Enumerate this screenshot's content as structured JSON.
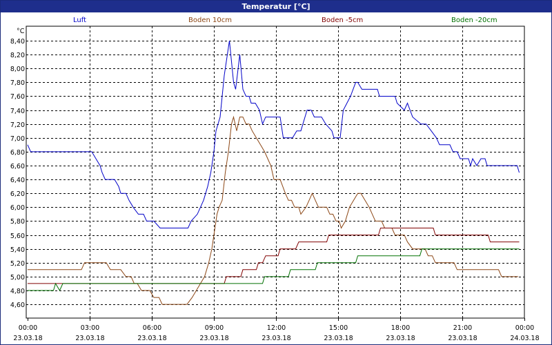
{
  "window": {
    "title": "Temperatur [°C]"
  },
  "chart_data": {
    "type": "line",
    "title": "Temperatur [°C]",
    "ylabel": "°C",
    "ylim": [
      4.5,
      8.5
    ],
    "yticks": [
      4.6,
      4.8,
      5.0,
      5.2,
      5.4,
      5.6,
      5.8,
      6.0,
      6.2,
      6.4,
      6.6,
      6.8,
      7.0,
      7.2,
      7.4,
      7.6,
      7.8,
      8.0,
      8.2,
      8.4
    ],
    "xlim": [
      0,
      24
    ],
    "xticks": [
      {
        "time": "00:00",
        "date": "23.03.18",
        "h": 0
      },
      {
        "time": "03:00",
        "date": "23.03.18",
        "h": 3
      },
      {
        "time": "06:00",
        "date": "23.03.18",
        "h": 6
      },
      {
        "time": "09:00",
        "date": "23.03.18",
        "h": 9
      },
      {
        "time": "12:00",
        "date": "23.03.18",
        "h": 12
      },
      {
        "time": "15:00",
        "date": "23.03.18",
        "h": 15
      },
      {
        "time": "18:00",
        "date": "23.03.18",
        "h": 18
      },
      {
        "time": "21:00",
        "date": "23.03.18",
        "h": 21
      },
      {
        "time": "00:00",
        "date": "24.03.18",
        "h": 24
      }
    ],
    "grid": true,
    "legend_position": "top",
    "series": [
      {
        "name": "Luft",
        "color": "#0000c8",
        "points": [
          [
            0,
            6.9
          ],
          [
            0.15,
            6.8
          ],
          [
            3.1,
            6.8
          ],
          [
            3.3,
            6.7
          ],
          [
            3.5,
            6.6
          ],
          [
            3.6,
            6.5
          ],
          [
            3.75,
            6.4
          ],
          [
            4.2,
            6.4
          ],
          [
            4.4,
            6.3
          ],
          [
            4.5,
            6.2
          ],
          [
            4.75,
            6.2
          ],
          [
            4.9,
            6.1
          ],
          [
            5.1,
            6.0
          ],
          [
            5.35,
            5.9
          ],
          [
            5.6,
            5.9
          ],
          [
            5.75,
            5.8
          ],
          [
            6.1,
            5.8
          ],
          [
            6.4,
            5.7
          ],
          [
            7.75,
            5.7
          ],
          [
            7.9,
            5.8
          ],
          [
            8.2,
            5.9
          ],
          [
            8.5,
            6.1
          ],
          [
            8.7,
            6.3
          ],
          [
            8.85,
            6.5
          ],
          [
            9.0,
            6.8
          ],
          [
            9.1,
            7.1
          ],
          [
            9.3,
            7.3
          ],
          [
            9.5,
            7.9
          ],
          [
            9.75,
            8.4
          ],
          [
            9.85,
            8.1
          ],
          [
            9.95,
            7.8
          ],
          [
            10.05,
            7.7
          ],
          [
            10.25,
            8.2
          ],
          [
            10.4,
            7.7
          ],
          [
            10.55,
            7.6
          ],
          [
            10.7,
            7.6
          ],
          [
            10.8,
            7.5
          ],
          [
            11.0,
            7.5
          ],
          [
            11.2,
            7.4
          ],
          [
            11.35,
            7.2
          ],
          [
            11.5,
            7.3
          ],
          [
            12.2,
            7.3
          ],
          [
            12.3,
            7.1
          ],
          [
            12.35,
            7.0
          ],
          [
            12.8,
            7.0
          ],
          [
            13.0,
            7.1
          ],
          [
            13.2,
            7.1
          ],
          [
            13.3,
            7.2
          ],
          [
            13.5,
            7.4
          ],
          [
            13.7,
            7.4
          ],
          [
            13.85,
            7.3
          ],
          [
            14.2,
            7.3
          ],
          [
            14.4,
            7.2
          ],
          [
            14.7,
            7.1
          ],
          [
            14.8,
            7.0
          ],
          [
            15.1,
            7.0
          ],
          [
            15.25,
            7.4
          ],
          [
            15.6,
            7.6
          ],
          [
            15.85,
            7.8
          ],
          [
            15.95,
            7.8
          ],
          [
            16.15,
            7.7
          ],
          [
            16.9,
            7.7
          ],
          [
            17.0,
            7.6
          ],
          [
            17.75,
            7.6
          ],
          [
            17.85,
            7.5
          ],
          [
            18.2,
            7.4
          ],
          [
            18.35,
            7.5
          ],
          [
            18.6,
            7.3
          ],
          [
            19.0,
            7.2
          ],
          [
            19.25,
            7.2
          ],
          [
            19.5,
            7.1
          ],
          [
            19.75,
            7.0
          ],
          [
            19.9,
            6.9
          ],
          [
            20.4,
            6.9
          ],
          [
            20.55,
            6.8
          ],
          [
            20.75,
            6.8
          ],
          [
            20.9,
            6.7
          ],
          [
            21.3,
            6.7
          ],
          [
            21.4,
            6.6
          ],
          [
            21.5,
            6.7
          ],
          [
            21.7,
            6.6
          ],
          [
            21.9,
            6.7
          ],
          [
            22.1,
            6.7
          ],
          [
            22.2,
            6.6
          ],
          [
            23.65,
            6.6
          ],
          [
            23.75,
            6.5
          ]
        ]
      },
      {
        "name": "Boden 10cm",
        "color": "#8b4513",
        "points": [
          [
            0,
            5.1
          ],
          [
            2.6,
            5.1
          ],
          [
            2.75,
            5.2
          ],
          [
            3.8,
            5.2
          ],
          [
            4.0,
            5.1
          ],
          [
            4.5,
            5.1
          ],
          [
            4.75,
            5.0
          ],
          [
            5.0,
            5.0
          ],
          [
            5.15,
            4.9
          ],
          [
            5.3,
            4.9
          ],
          [
            5.5,
            4.8
          ],
          [
            5.9,
            4.8
          ],
          [
            6.1,
            4.7
          ],
          [
            6.35,
            4.7
          ],
          [
            6.5,
            4.6
          ],
          [
            7.7,
            4.6
          ],
          [
            7.95,
            4.7
          ],
          [
            8.15,
            4.8
          ],
          [
            8.35,
            4.9
          ],
          [
            8.55,
            5.0
          ],
          [
            8.75,
            5.2
          ],
          [
            8.9,
            5.4
          ],
          [
            9.05,
            5.7
          ],
          [
            9.15,
            5.9
          ],
          [
            9.25,
            6.0
          ],
          [
            9.4,
            6.1
          ],
          [
            9.55,
            6.5
          ],
          [
            9.7,
            6.8
          ],
          [
            9.85,
            7.2
          ],
          [
            9.95,
            7.3
          ],
          [
            10.1,
            7.1
          ],
          [
            10.25,
            7.3
          ],
          [
            10.4,
            7.3
          ],
          [
            10.55,
            7.2
          ],
          [
            10.7,
            7.2
          ],
          [
            10.85,
            7.1
          ],
          [
            11.05,
            7.0
          ],
          [
            11.25,
            6.9
          ],
          [
            11.45,
            6.8
          ],
          [
            11.6,
            6.7
          ],
          [
            11.75,
            6.6
          ],
          [
            11.9,
            6.4
          ],
          [
            12.2,
            6.4
          ],
          [
            12.45,
            6.2
          ],
          [
            12.6,
            6.1
          ],
          [
            12.75,
            6.1
          ],
          [
            12.9,
            6.0
          ],
          [
            13.1,
            6.0
          ],
          [
            13.2,
            5.9
          ],
          [
            13.45,
            6.0
          ],
          [
            13.6,
            6.1
          ],
          [
            13.75,
            6.2
          ],
          [
            13.9,
            6.1
          ],
          [
            14.05,
            6.0
          ],
          [
            14.45,
            6.0
          ],
          [
            14.6,
            5.9
          ],
          [
            14.75,
            5.9
          ],
          [
            14.9,
            5.8
          ],
          [
            15.05,
            5.8
          ],
          [
            15.15,
            5.7
          ],
          [
            15.35,
            5.8
          ],
          [
            15.55,
            6.0
          ],
          [
            15.75,
            6.1
          ],
          [
            15.95,
            6.2
          ],
          [
            16.1,
            6.2
          ],
          [
            16.3,
            6.1
          ],
          [
            16.5,
            6.0
          ],
          [
            16.65,
            5.9
          ],
          [
            16.8,
            5.8
          ],
          [
            17.1,
            5.8
          ],
          [
            17.25,
            5.7
          ],
          [
            17.6,
            5.7
          ],
          [
            17.75,
            5.6
          ],
          [
            18.2,
            5.6
          ],
          [
            18.35,
            5.5
          ],
          [
            18.6,
            5.4
          ],
          [
            19.2,
            5.4
          ],
          [
            19.35,
            5.3
          ],
          [
            19.55,
            5.3
          ],
          [
            19.7,
            5.2
          ],
          [
            20.6,
            5.2
          ],
          [
            20.75,
            5.1
          ],
          [
            22.75,
            5.1
          ],
          [
            22.9,
            5.0
          ],
          [
            23.7,
            5.0
          ]
        ]
      },
      {
        "name": "Boden -5cm",
        "color": "#800000",
        "points": [
          [
            0,
            4.9
          ],
          [
            9.5,
            4.9
          ],
          [
            9.6,
            5.0
          ],
          [
            10.3,
            5.0
          ],
          [
            10.4,
            5.1
          ],
          [
            11.05,
            5.1
          ],
          [
            11.15,
            5.2
          ],
          [
            11.35,
            5.2
          ],
          [
            11.5,
            5.3
          ],
          [
            12.1,
            5.3
          ],
          [
            12.2,
            5.4
          ],
          [
            12.95,
            5.4
          ],
          [
            13.1,
            5.5
          ],
          [
            14.45,
            5.5
          ],
          [
            14.55,
            5.6
          ],
          [
            16.95,
            5.6
          ],
          [
            17.05,
            5.7
          ],
          [
            19.6,
            5.7
          ],
          [
            19.7,
            5.6
          ],
          [
            22.25,
            5.6
          ],
          [
            22.35,
            5.5
          ],
          [
            23.75,
            5.5
          ]
        ]
      },
      {
        "name": "Boden -20cm",
        "color": "#007000",
        "points": [
          [
            0,
            4.8
          ],
          [
            1.25,
            4.8
          ],
          [
            1.35,
            4.9
          ],
          [
            1.55,
            4.8
          ],
          [
            1.7,
            4.9
          ],
          [
            11.35,
            4.9
          ],
          [
            11.45,
            5.0
          ],
          [
            12.6,
            5.0
          ],
          [
            12.7,
            5.1
          ],
          [
            13.9,
            5.1
          ],
          [
            14.0,
            5.2
          ],
          [
            15.85,
            5.2
          ],
          [
            15.95,
            5.3
          ],
          [
            18.95,
            5.3
          ],
          [
            19.05,
            5.4
          ],
          [
            23.75,
            5.4
          ]
        ]
      }
    ]
  }
}
